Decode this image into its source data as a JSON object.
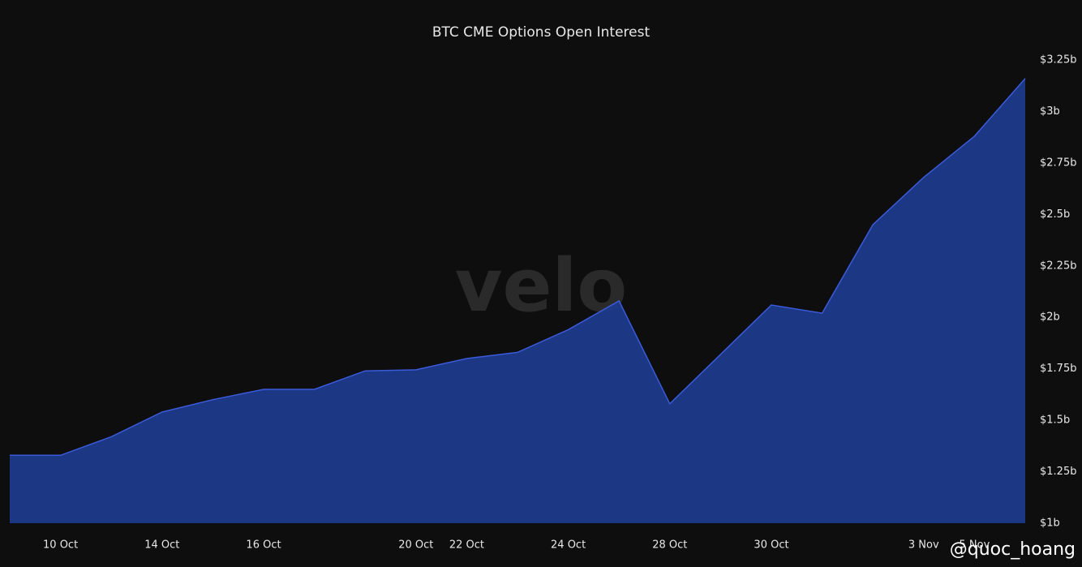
{
  "chart_data": {
    "type": "area",
    "title": "BTC CME Options Open Interest",
    "categories": [
      null,
      "10 Oct",
      null,
      "14 Oct",
      null,
      "16 Oct",
      null,
      null,
      "20 Oct",
      "22 Oct",
      null,
      "24 Oct",
      null,
      "28 Oct",
      null,
      "30 Oct",
      null,
      null,
      "3 Nov",
      "5 Nov",
      null
    ],
    "series": [
      {
        "name": "Open Interest",
        "color": "#3b5bdb",
        "values": [
          1.33,
          1.33,
          1.42,
          1.54,
          1.6,
          1.65,
          1.65,
          1.74,
          1.745,
          1.8,
          1.83,
          1.94,
          2.08,
          1.58,
          1.82,
          2.06,
          2.02,
          2.45,
          2.68,
          2.88,
          3.16
        ]
      }
    ],
    "ylim": [
      1,
      3.25
    ],
    "yticks": [
      {
        "value": 1,
        "label": "$1b"
      },
      {
        "value": 1.25,
        "label": "$1.25b"
      },
      {
        "value": 1.5,
        "label": "$1.5b"
      },
      {
        "value": 1.75,
        "label": "$1.75b"
      },
      {
        "value": 2,
        "label": "$2b"
      },
      {
        "value": 2.25,
        "label": "$2.25b"
      },
      {
        "value": 2.5,
        "label": "$2.5b"
      },
      {
        "value": 2.75,
        "label": "$2.75b"
      },
      {
        "value": 3,
        "label": "$3b"
      },
      {
        "value": 3.25,
        "label": "$3.25b"
      }
    ],
    "grid": false,
    "legend": false
  },
  "watermark": "velo",
  "credit": "@quoc_hoang"
}
